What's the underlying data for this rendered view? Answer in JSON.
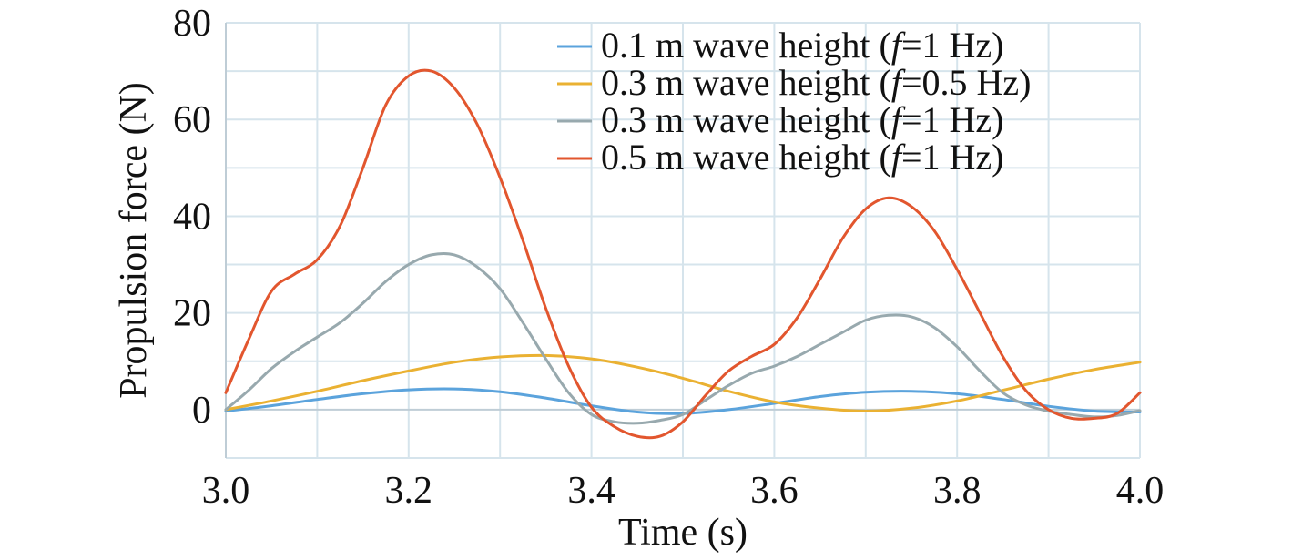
{
  "chart_data": {
    "type": "line",
    "title": "",
    "xlabel": "Time (s)",
    "ylabel": "Propulsion force (N)",
    "xlim": [
      3.0,
      4.0
    ],
    "ylim": [
      -10,
      80
    ],
    "xticks": [
      "3.0",
      "3.2",
      "3.4",
      "3.6",
      "3.8",
      "4.0"
    ],
    "yticks": [
      "0",
      "20",
      "40",
      "60",
      "80"
    ],
    "grid": true,
    "legend_position": "top-right",
    "series": [
      {
        "name": "0.1 m wave height (f=1 Hz)",
        "legend": {
          "prefix": "0.1 m wave height (",
          "italic": "f",
          "suffix": "=1 Hz)"
        },
        "color": "#5ba3dc",
        "x": [
          3.0,
          3.05,
          3.1,
          3.15,
          3.2,
          3.25,
          3.3,
          3.35,
          3.4,
          3.45,
          3.5,
          3.55,
          3.6,
          3.65,
          3.7,
          3.75,
          3.8,
          3.85,
          3.9,
          3.95,
          4.0
        ],
        "y": [
          -0.3,
          0.8,
          2.1,
          3.3,
          4.1,
          4.3,
          3.7,
          2.4,
          0.8,
          -0.5,
          -0.8,
          0.0,
          1.3,
          2.7,
          3.6,
          3.8,
          3.3,
          2.1,
          0.7,
          -0.3,
          -0.5
        ]
      },
      {
        "name": "0.3 m wave height (f=0.5 Hz)",
        "legend": {
          "prefix": "0.3 m wave height (",
          "italic": "f",
          "suffix": "=0.5 Hz)"
        },
        "color": "#eab132",
        "x": [
          3.0,
          3.05,
          3.1,
          3.15,
          3.2,
          3.25,
          3.3,
          3.35,
          3.4,
          3.45,
          3.5,
          3.55,
          3.6,
          3.65,
          3.7,
          3.75,
          3.8,
          3.85,
          3.9,
          3.95,
          4.0
        ],
        "y": [
          0.0,
          1.8,
          3.8,
          6.0,
          8.0,
          9.8,
          10.9,
          11.2,
          10.5,
          8.8,
          6.5,
          3.8,
          1.6,
          0.3,
          -0.3,
          0.3,
          1.8,
          4.0,
          6.3,
          8.3,
          9.8
        ]
      },
      {
        "name": "0.3 m wave height (f=1 Hz)",
        "legend": {
          "prefix": "0.3 m wave height (",
          "italic": "f",
          "suffix": "=1 Hz)"
        },
        "color": "#98a9ae",
        "x": [
          3.0,
          3.025,
          3.05,
          3.075,
          3.1,
          3.125,
          3.15,
          3.175,
          3.2,
          3.225,
          3.25,
          3.275,
          3.3,
          3.325,
          3.35,
          3.375,
          3.4,
          3.425,
          3.45,
          3.475,
          3.5,
          3.525,
          3.55,
          3.575,
          3.6,
          3.625,
          3.65,
          3.675,
          3.7,
          3.725,
          3.75,
          3.775,
          3.8,
          3.825,
          3.85,
          3.875,
          3.9,
          3.925,
          3.95,
          3.975,
          4.0
        ],
        "y": [
          0.0,
          4.0,
          8.5,
          12.0,
          15.0,
          18.0,
          22.0,
          26.5,
          30.0,
          32.0,
          32.0,
          29.5,
          25.0,
          18.0,
          10.5,
          3.5,
          -1.0,
          -2.5,
          -2.8,
          -2.2,
          -1.0,
          2.0,
          5.0,
          7.5,
          9.0,
          11.0,
          13.5,
          16.0,
          18.5,
          19.5,
          19.2,
          17.0,
          13.0,
          8.0,
          3.5,
          1.0,
          -0.3,
          -1.0,
          -1.5,
          -1.2,
          -0.2
        ]
      },
      {
        "name": "0.5 m wave height (f=1 Hz)",
        "legend": {
          "prefix": "0.5 m wave height (",
          "italic": "f",
          "suffix": "=1 Hz)"
        },
        "color": "#e2562e",
        "x": [
          3.0,
          3.025,
          3.05,
          3.075,
          3.1,
          3.125,
          3.15,
          3.175,
          3.2,
          3.225,
          3.25,
          3.275,
          3.3,
          3.325,
          3.35,
          3.375,
          3.4,
          3.425,
          3.45,
          3.475,
          3.5,
          3.525,
          3.55,
          3.575,
          3.6,
          3.625,
          3.65,
          3.675,
          3.7,
          3.725,
          3.75,
          3.775,
          3.8,
          3.825,
          3.85,
          3.875,
          3.9,
          3.925,
          3.95,
          3.975,
          4.0
        ],
        "y": [
          3.5,
          14.5,
          24.5,
          28.0,
          31.0,
          38.0,
          50.0,
          63.0,
          69.0,
          70.0,
          66.5,
          59.0,
          48.0,
          35.0,
          21.0,
          9.0,
          0.5,
          -3.5,
          -5.5,
          -5.5,
          -2.5,
          3.0,
          8.0,
          11.0,
          13.5,
          19.0,
          27.0,
          35.5,
          41.5,
          43.8,
          42.0,
          37.0,
          29.0,
          20.0,
          11.0,
          4.0,
          0.0,
          -1.8,
          -1.8,
          -0.8,
          3.5
        ]
      }
    ]
  }
}
